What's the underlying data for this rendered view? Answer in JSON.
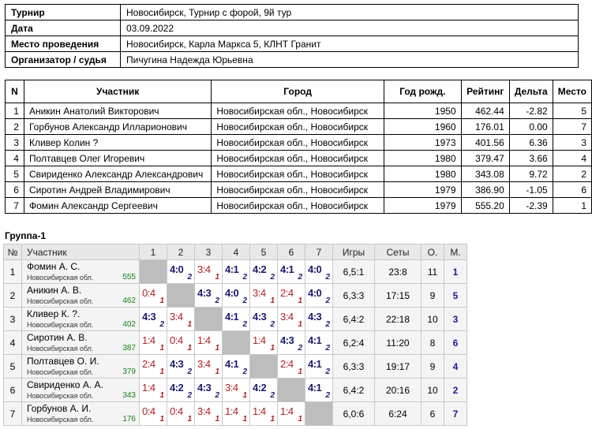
{
  "info": {
    "rows": [
      {
        "key": "Турнир",
        "value": "Новосибирск, Турнир с форой, 9й тур"
      },
      {
        "key": "Дата",
        "value": "03.09.2022"
      },
      {
        "key": "Место проведения",
        "value": "Новосибирск, Карла Маркса 5, КЛНТ Гранит"
      },
      {
        "key": "Организатор / судья",
        "value": "Пичугина Надежда Юрьевна"
      }
    ]
  },
  "participants": {
    "headers": {
      "n": "N",
      "name": "Участник",
      "city": "Город",
      "year": "Год рожд.",
      "rating": "Рейтинг",
      "delta": "Дельта",
      "place": "Место"
    },
    "rows": [
      {
        "n": "1",
        "name": "Аникин Анатолий Викторович",
        "city": "Новосибирская обл., Новосибирск",
        "year": "1950",
        "rating": "462.44",
        "delta": "-2.82",
        "place": "5"
      },
      {
        "n": "2",
        "name": "Горбунов Александр Илларионович",
        "city": "Новосибирская обл., Новосибирск",
        "year": "1960",
        "rating": "176.01",
        "delta": "0.00",
        "place": "7"
      },
      {
        "n": "3",
        "name": "Кливер Колин ?",
        "city": "Новосибирская обл., Новосибирск",
        "year": "1973",
        "rating": "401.56",
        "delta": "6.36",
        "place": "3"
      },
      {
        "n": "4",
        "name": "Полтавцев Олег Игоревич",
        "city": "Новосибирская обл., Новосибирск",
        "year": "1980",
        "rating": "379.47",
        "delta": "3.66",
        "place": "4"
      },
      {
        "n": "5",
        "name": "Свириденко Александр Александрович",
        "city": "Новосибирская обл., Новосибирск",
        "year": "1980",
        "rating": "343.08",
        "delta": "9.72",
        "place": "2"
      },
      {
        "n": "6",
        "name": "Сиротин Андрей Владимирович",
        "city": "Новосибирская обл., Новосибирск",
        "year": "1979",
        "rating": "386.90",
        "delta": "-1.05",
        "place": "6"
      },
      {
        "n": "7",
        "name": "Фомин Александр Сергеевич",
        "city": "Новосибирская обл., Новосибирск",
        "year": "1979",
        "rating": "555.20",
        "delta": "-2.39",
        "place": "1"
      }
    ]
  },
  "group": {
    "title": "Группа-1",
    "headers": {
      "n": "№",
      "name": "Участник",
      "cols": [
        "1",
        "2",
        "3",
        "4",
        "5",
        "6",
        "7"
      ],
      "games": "Игры",
      "sets": "Сеты",
      "points": "О.",
      "place": "М."
    },
    "rows": [
      {
        "n": "1",
        "name": "Фомин А. С.",
        "region": "Новосибирская обл.",
        "rating": "555",
        "results": [
          null,
          {
            "s": "4:0",
            "p": "2"
          },
          {
            "s": "3:4",
            "p": "1"
          },
          {
            "s": "4:1",
            "p": "2"
          },
          {
            "s": "4:2",
            "p": "2"
          },
          {
            "s": "4:1",
            "p": "2"
          },
          {
            "s": "4:0",
            "p": "2"
          }
        ],
        "games": "6,5:1",
        "sets": "23:8",
        "points": "11",
        "place": "1"
      },
      {
        "n": "2",
        "name": "Аникин А. В.",
        "region": "Новосибирская обл.",
        "rating": "462",
        "results": [
          {
            "s": "0:4",
            "p": "1"
          },
          null,
          {
            "s": "4:3",
            "p": "2"
          },
          {
            "s": "4:0",
            "p": "2"
          },
          {
            "s": "3:4",
            "p": "1"
          },
          {
            "s": "2:4",
            "p": "1"
          },
          {
            "s": "4:0",
            "p": "2"
          }
        ],
        "games": "6,3:3",
        "sets": "17:15",
        "points": "9",
        "place": "5"
      },
      {
        "n": "3",
        "name": "Кливер К. ?.",
        "region": "Новосибирская обл.",
        "rating": "402",
        "results": [
          {
            "s": "4:3",
            "p": "2"
          },
          {
            "s": "3:4",
            "p": "1"
          },
          null,
          {
            "s": "4:1",
            "p": "2"
          },
          {
            "s": "4:3",
            "p": "2"
          },
          {
            "s": "3:4",
            "p": "1"
          },
          {
            "s": "4:3",
            "p": "2"
          }
        ],
        "games": "6,4:2",
        "sets": "22:18",
        "points": "10",
        "place": "3"
      },
      {
        "n": "4",
        "name": "Сиротин А. В.",
        "region": "Новосибирская обл.",
        "rating": "387",
        "results": [
          {
            "s": "1:4",
            "p": "1"
          },
          {
            "s": "0:4",
            "p": "1"
          },
          {
            "s": "1:4",
            "p": "1"
          },
          null,
          {
            "s": "1:4",
            "p": "1"
          },
          {
            "s": "4:3",
            "p": "2"
          },
          {
            "s": "4:1",
            "p": "2"
          }
        ],
        "games": "6,2:4",
        "sets": "11:20",
        "points": "8",
        "place": "6"
      },
      {
        "n": "5",
        "name": "Полтавцев О. И.",
        "region": "Новосибирская обл.",
        "rating": "379",
        "results": [
          {
            "s": "2:4",
            "p": "1"
          },
          {
            "s": "4:3",
            "p": "2"
          },
          {
            "s": "3:4",
            "p": "1"
          },
          {
            "s": "4:1",
            "p": "2"
          },
          null,
          {
            "s": "2:4",
            "p": "1"
          },
          {
            "s": "4:1",
            "p": "2"
          }
        ],
        "games": "6,3:3",
        "sets": "19:17",
        "points": "9",
        "place": "4"
      },
      {
        "n": "6",
        "name": "Свириденко А. А.",
        "region": "Новосибирская обл.",
        "rating": "343",
        "results": [
          {
            "s": "1:4",
            "p": "1"
          },
          {
            "s": "4:2",
            "p": "2"
          },
          {
            "s": "4:3",
            "p": "2"
          },
          {
            "s": "3:4",
            "p": "1"
          },
          {
            "s": "4:2",
            "p": "2"
          },
          null,
          {
            "s": "4:1",
            "p": "2"
          }
        ],
        "games": "6,4:2",
        "sets": "20:16",
        "points": "10",
        "place": "2"
      },
      {
        "n": "7",
        "name": "Горбунов А. И.",
        "region": "Новосибирская обл.",
        "rating": "176",
        "results": [
          {
            "s": "0:4",
            "p": "1"
          },
          {
            "s": "0:4",
            "p": "1"
          },
          {
            "s": "3:4",
            "p": "1"
          },
          {
            "s": "1:4",
            "p": "1"
          },
          {
            "s": "1:4",
            "p": "1"
          },
          {
            "s": "1:4",
            "p": "1"
          },
          null
        ],
        "games": "6,0:6",
        "sets": "6:24",
        "points": "6",
        "place": "7"
      }
    ]
  },
  "colors": {
    "win": "#1a1a6e",
    "loss": "#b02020",
    "rating": "#1a7f1a",
    "diagonal": "#bdbdbd",
    "header_bg": "#e8e8e8"
  }
}
